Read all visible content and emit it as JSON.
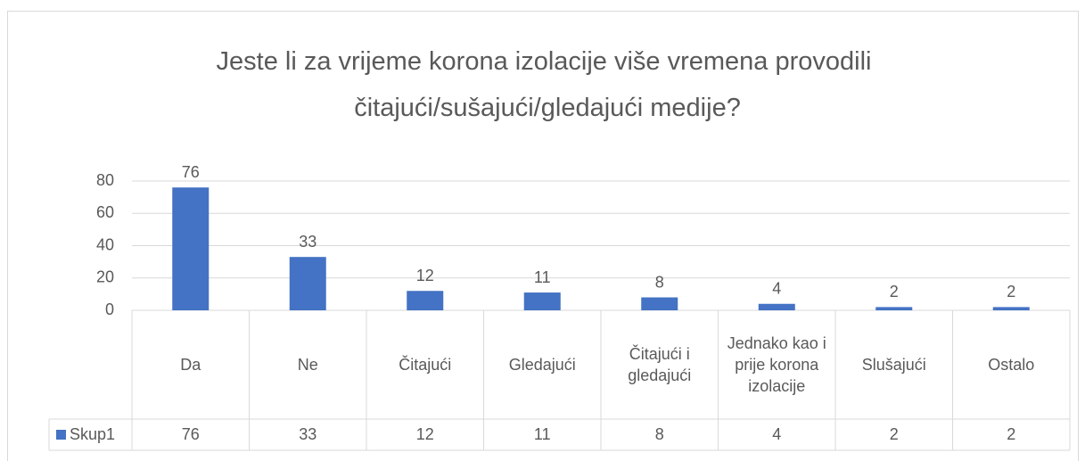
{
  "chart_data": {
    "type": "bar",
    "title": "Jeste li za vrijeme korona izolacije više vremena provodili čitajući/sušajući/gledajući medije?",
    "categories": [
      "Da",
      "Ne",
      "Čitajući",
      "Gledajući",
      "Čitajući i gledajući",
      "Jednako kao i prije korona izolacije",
      "Slušajući",
      "Ostalo"
    ],
    "series": [
      {
        "name": "Skup1",
        "color": "#4472c4",
        "values": [
          76,
          33,
          12,
          11,
          8,
          4,
          2,
          2
        ]
      }
    ],
    "ylim": [
      0,
      80
    ],
    "yticks": [
      0,
      20,
      40,
      60,
      80
    ],
    "grid": true,
    "data_table": true
  }
}
